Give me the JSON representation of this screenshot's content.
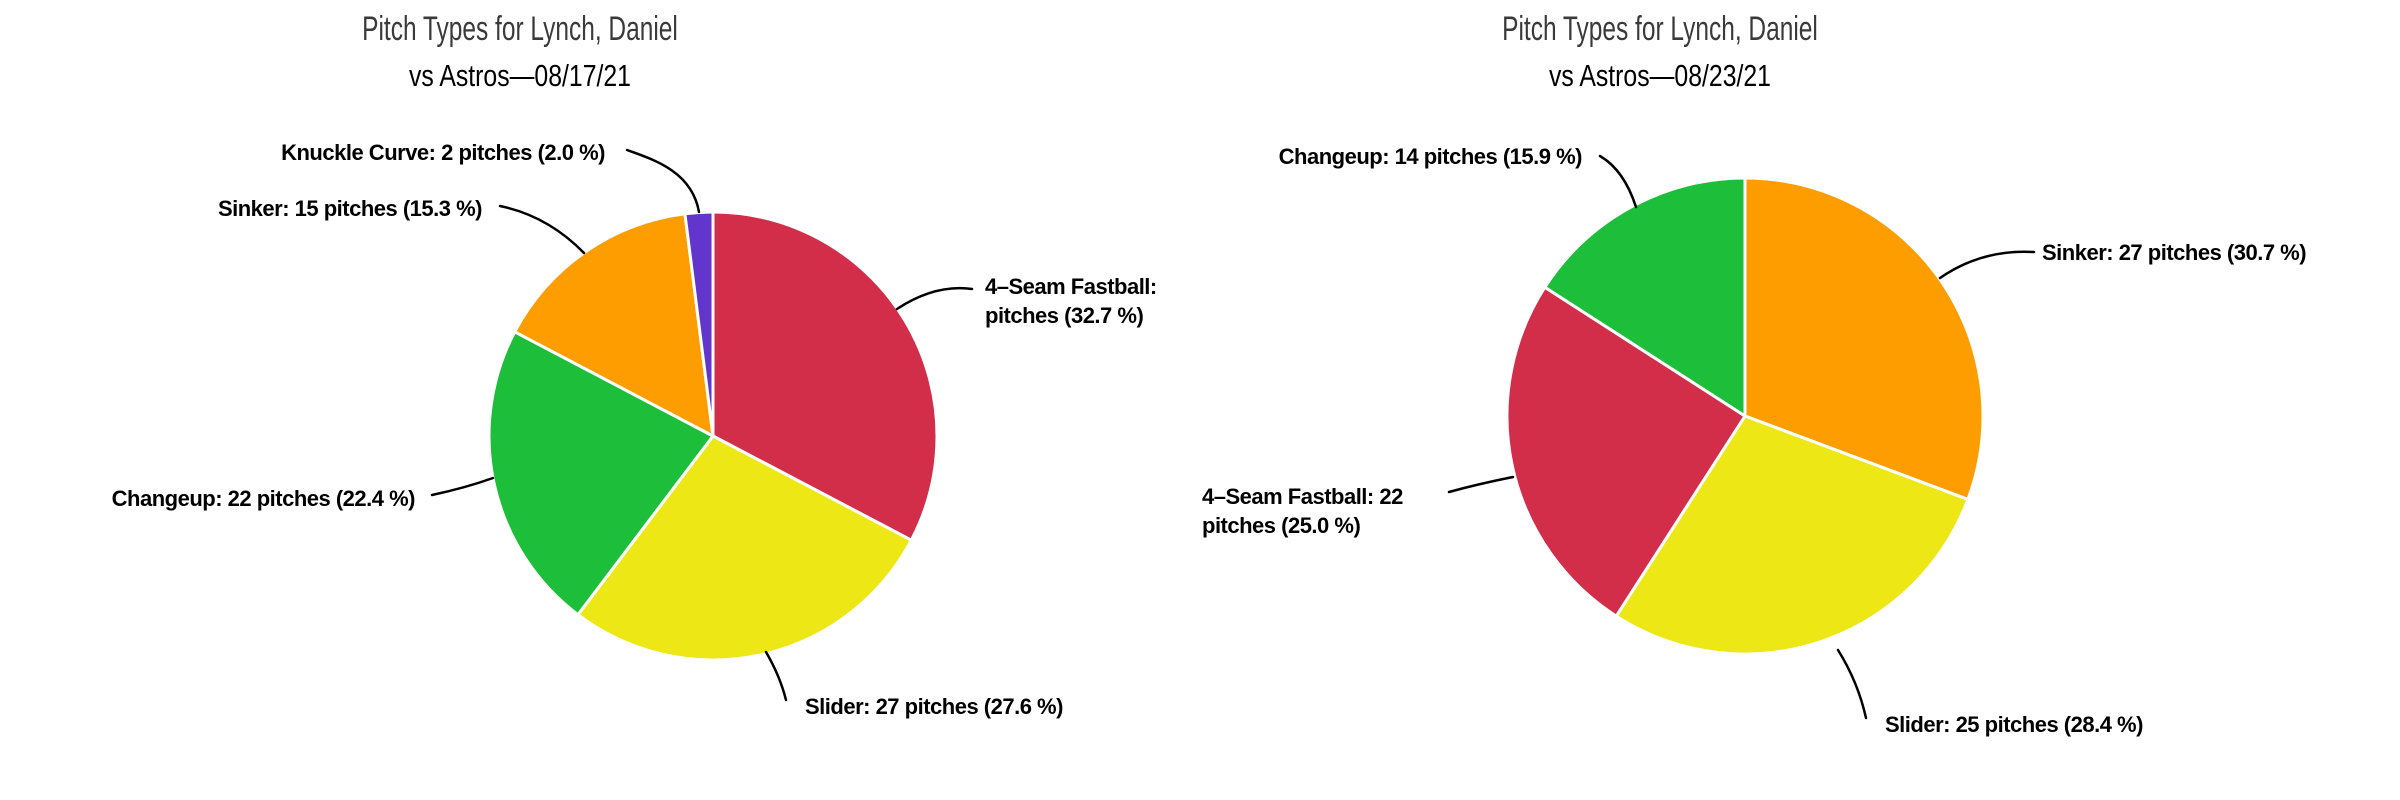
{
  "chart_data": [
    {
      "type": "pie",
      "title": "Pitch Types for Lynch, Daniel",
      "subtitle": "vs Astros—08/17/21",
      "start_angle": "12 o'clock",
      "direction": "clockwise",
      "legend_position": "none",
      "slices": [
        {
          "label": "4-Seam Fastball",
          "percent": 32.7,
          "color": "#D22D49",
          "callout": "4–Seam Fastball:\npitches (32.7 %)"
        },
        {
          "label": "Slider",
          "pitches": 27,
          "percent": 27.6,
          "color": "#EEE716",
          "callout": "Slider: 27 pitches (27.6 %)"
        },
        {
          "label": "Changeup",
          "pitches": 22,
          "percent": 22.4,
          "color": "#1DBE3A",
          "callout": "Changeup: 22 pitches (22.4 %)"
        },
        {
          "label": "Sinker",
          "pitches": 15,
          "percent": 15.3,
          "color": "#FE9D00",
          "callout": "Sinker: 15 pitches (15.3 %)"
        },
        {
          "label": "Knuckle Curve",
          "pitches": 2,
          "percent": 2.0,
          "color": "#6236CD",
          "callout": "Knuckle Curve: 2 pitches (2.0 %)"
        }
      ]
    },
    {
      "type": "pie",
      "title": "Pitch Types for Lynch, Daniel",
      "subtitle": "vs Astros—08/23/21",
      "start_angle": "12 o'clock",
      "direction": "clockwise",
      "legend_position": "none",
      "slices": [
        {
          "label": "Sinker",
          "pitches": 27,
          "percent": 30.7,
          "color": "#FE9D00",
          "callout": "Sinker: 27 pitches (30.7 %)"
        },
        {
          "label": "Slider",
          "pitches": 25,
          "percent": 28.4,
          "color": "#EEE716",
          "callout": "Slider: 25 pitches (28.4 %)"
        },
        {
          "label": "4-Seam Fastball",
          "pitches": 22,
          "percent": 25.0,
          "color": "#D22D49",
          "callout": "4–Seam Fastball: 22\npitches (25.0 %)"
        },
        {
          "label": "Changeup",
          "pitches": 14,
          "percent": 15.9,
          "color": "#1DBE3A",
          "callout": "Changeup: 14 pitches (15.9 %)"
        }
      ]
    }
  ]
}
